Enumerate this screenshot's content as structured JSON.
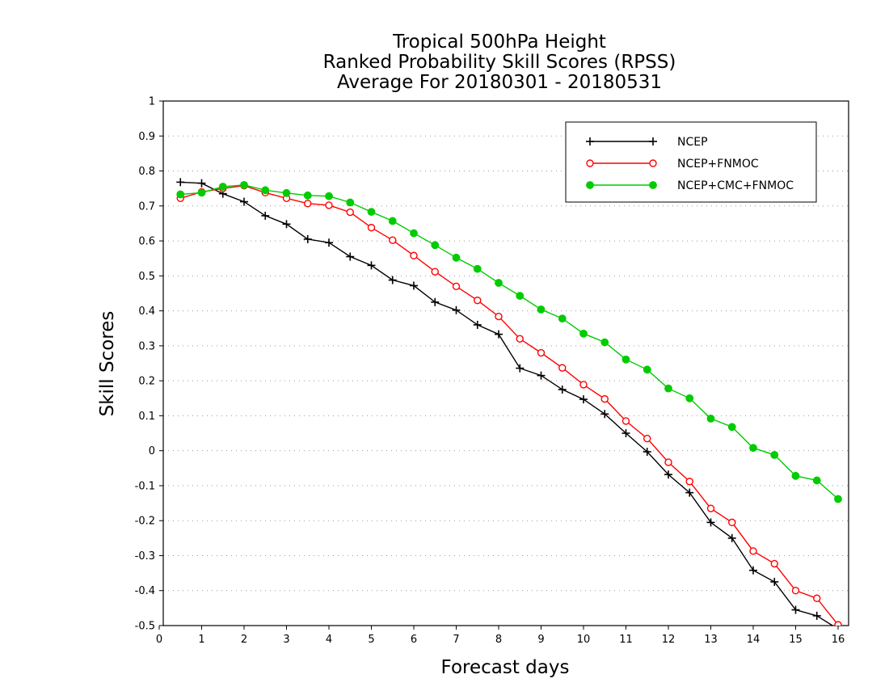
{
  "chart_data": {
    "type": "line",
    "title": [
      "Tropical 500hPa Height",
      "Ranked Probability Skill Scores (RPSS)",
      "Average For 20180301 - 20180531"
    ],
    "xlabel": "Forecast days",
    "ylabel": "Skill Scores",
    "xlim": [
      0,
      16
    ],
    "ylim": [
      -0.5,
      1
    ],
    "xticks": [
      "0",
      "1",
      "2",
      "3",
      "4",
      "5",
      "6",
      "7",
      "8",
      "9",
      "10",
      "11",
      "12",
      "13",
      "14",
      "15",
      "16"
    ],
    "yticks": [
      "1",
      "0.9",
      "0.8",
      "0.7",
      "0.6",
      "0.5",
      "0.4",
      "0.3",
      "0.2",
      "0.1",
      "0",
      "-0.1",
      "-0.2",
      "-0.3",
      "-0.4",
      "-0.5"
    ],
    "grid": "horizontal dotted",
    "legend_position": "top-right",
    "x": [
      0.5,
      1,
      1.5,
      2,
      2.5,
      3,
      3.5,
      4,
      4.5,
      5,
      5.5,
      6,
      6.5,
      7,
      7.5,
      8,
      8.5,
      9,
      9.5,
      10,
      10.5,
      11,
      11.5,
      12,
      12.5,
      13,
      13.5,
      14,
      14.5,
      15,
      15.5,
      16
    ],
    "series": [
      {
        "name": "NCEP",
        "color": "#000000",
        "marker": "plus",
        "values": [
          0.768,
          0.765,
          0.735,
          0.712,
          0.672,
          0.648,
          0.605,
          0.595,
          0.555,
          0.53,
          0.488,
          0.472,
          0.425,
          0.402,
          0.36,
          0.333,
          0.236,
          0.215,
          0.175,
          0.147,
          0.105,
          0.05,
          -0.003,
          -0.068,
          -0.12,
          -0.205,
          -0.25,
          -0.342,
          -0.375,
          -0.455,
          -0.472,
          -0.51
        ]
      },
      {
        "name": "NCEP+FNMOC",
        "color": "#ff0000",
        "marker": "open-circle",
        "values": [
          0.722,
          0.74,
          0.75,
          0.758,
          0.738,
          0.722,
          0.707,
          0.702,
          0.682,
          0.638,
          0.602,
          0.558,
          0.512,
          0.47,
          0.43,
          0.384,
          0.32,
          0.28,
          0.237,
          0.189,
          0.148,
          0.085,
          0.035,
          -0.033,
          -0.088,
          -0.165,
          -0.205,
          -0.287,
          -0.323,
          -0.4,
          -0.422,
          -0.498
        ]
      },
      {
        "name": "NCEP+CMC+FNMOC",
        "color": "#00cc00",
        "marker": "filled-circle",
        "values": [
          0.733,
          0.738,
          0.755,
          0.76,
          0.745,
          0.737,
          0.73,
          0.728,
          0.71,
          0.683,
          0.657,
          0.622,
          0.588,
          0.552,
          0.52,
          0.48,
          0.443,
          0.404,
          0.378,
          0.335,
          0.31,
          0.261,
          0.232,
          0.178,
          0.15,
          0.092,
          0.068,
          0.008,
          -0.012,
          -0.072,
          -0.085,
          -0.138
        ]
      }
    ]
  }
}
